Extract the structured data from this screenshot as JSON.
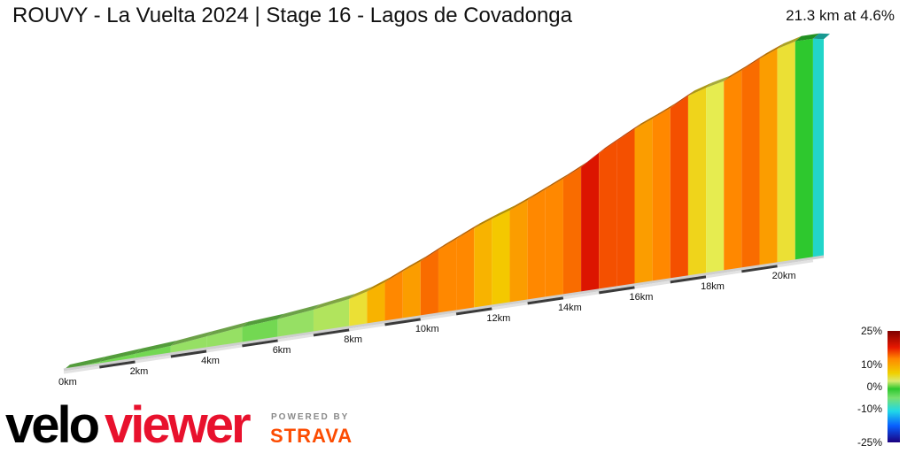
{
  "header": {
    "title": "ROUVY - La Vuelta 2024 | Stage 16 - Lagos de Covadonga",
    "summary": "21.3 km at 4.6%"
  },
  "branding": {
    "logo_text": "veloviewer",
    "powered_by": "POWERED BY",
    "strava": "STRAVA",
    "logo_color": "#e8112d",
    "strava_color": "#fc4c02"
  },
  "chart_data": {
    "type": "area",
    "title": "ROUVY - La Vuelta 2024 | Stage 16 - Lagos de Covadonga",
    "subtitle": "21.3 km at 4.6%",
    "xlabel": "",
    "ylabel": "",
    "x_unit": "km",
    "xlim": [
      0,
      21.3
    ],
    "x_ticks": [
      "0km",
      "2km",
      "4km",
      "6km",
      "8km",
      "10km",
      "12km",
      "14km",
      "16km",
      "18km",
      "20km"
    ],
    "x": [
      0,
      1,
      2,
      3,
      4,
      5,
      6,
      7,
      8,
      8.5,
      9,
      9.5,
      10,
      10.5,
      11,
      11.5,
      12,
      12.5,
      13,
      13.5,
      14,
      14.5,
      15,
      15.5,
      16,
      16.5,
      17,
      17.5,
      18,
      18.5,
      19,
      19.5,
      20,
      20.5,
      21,
      21.3
    ],
    "gradient_percent": [
      1,
      2,
      2,
      2,
      3,
      3,
      2,
      3,
      4,
      7,
      10,
      12,
      11,
      13,
      12,
      12,
      10,
      9,
      11,
      12,
      12,
      13,
      17,
      14,
      14,
      11,
      12,
      14,
      8,
      6,
      12,
      13,
      11,
      7,
      0,
      -5
    ],
    "legend_ticks": [
      "25%",
      "10%",
      "0%",
      "-10%",
      "-25%"
    ],
    "legend_range": [
      -25,
      25
    ]
  }
}
